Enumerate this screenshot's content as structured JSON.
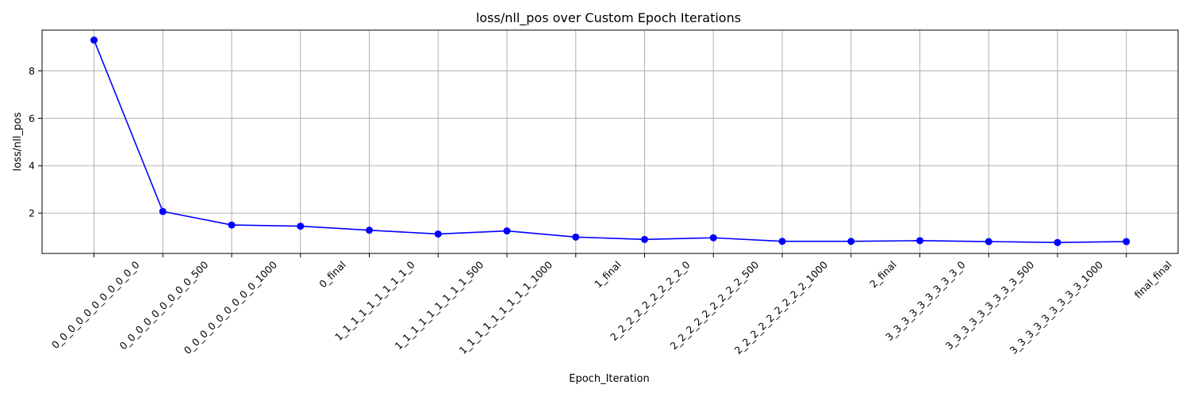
{
  "chart_data": {
    "type": "line",
    "title": "loss/nll_pos over Custom Epoch Iterations",
    "xlabel": "Epoch_Iteration",
    "ylabel": "loss/nll_pos",
    "categories": [
      "0_0_0_0_0_0_0_0_0_0_0",
      "0_0_0_0_0_0_0_0_0_500",
      "0_0_0_0_0_0_0_0_0_1000",
      "0_final",
      "1_1_1_1_1_1_1_1_1_0",
      "1_1_1_1_1_1_1_1_1_500",
      "1_1_1_1_1_1_1_1_1_1000",
      "1_final",
      "2_2_2_2_2_2_2_2_2_0",
      "2_2_2_2_2_2_2_2_2_500",
      "2_2_2_2_2_2_2_2_2_1000",
      "2_final",
      "3_3_3_3_3_3_3_3_3_0",
      "3_3_3_3_3_3_3_3_3_500",
      "3_3_3_3_3_3_3_3_3_1000",
      "final_final"
    ],
    "series": [
      {
        "values": [
          9.3,
          2.07,
          1.5,
          1.45,
          1.28,
          1.12,
          1.25,
          0.99,
          0.89,
          0.96,
          0.81,
          0.81,
          0.84,
          0.8,
          0.76,
          0.8
        ],
        "color": "#0000ff",
        "marker": "circle"
      }
    ],
    "yticks": [
      2,
      4,
      6,
      8
    ],
    "ylim": [
      0.3,
      9.72
    ],
    "grid": true,
    "legend": "none"
  }
}
